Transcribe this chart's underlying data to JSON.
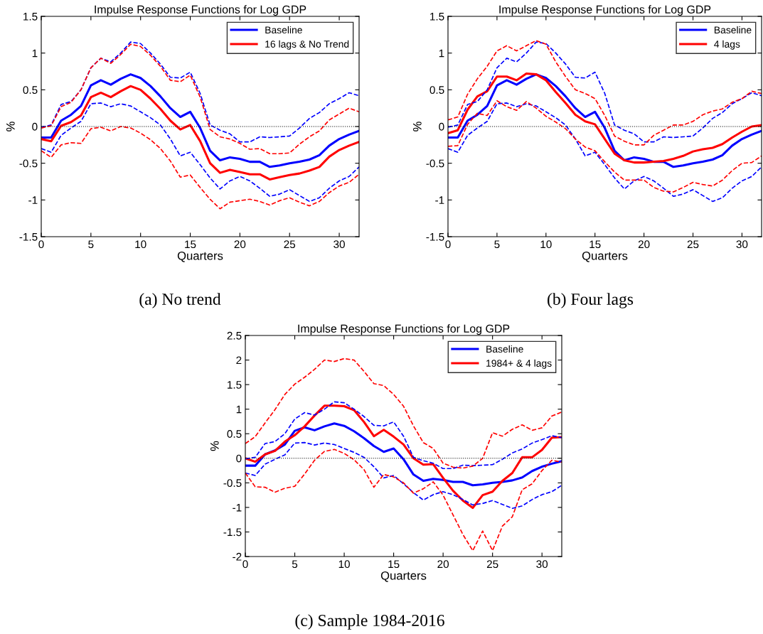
{
  "chart_data": [
    {
      "type": "line",
      "title": "Impulse Response Functions for Log GDP",
      "xlabel": "Quarters",
      "ylabel": "%",
      "annotations": [
        "(a) No trend"
      ],
      "legend": "top right",
      "grid": false,
      "marker": "none",
      "x": [
        0,
        1,
        2,
        3,
        4,
        5,
        6,
        7,
        8,
        9,
        10,
        11,
        12,
        13,
        14,
        15,
        16,
        17,
        18,
        19,
        20,
        21,
        22,
        23,
        24,
        25,
        26,
        27,
        28,
        29,
        30,
        31,
        32
      ],
      "xlim": [
        0,
        32
      ],
      "xticks": [
        0,
        5,
        10,
        15,
        20,
        25,
        30
      ],
      "ylim": [
        -1.5,
        1.5
      ],
      "yticks": [
        -1.5,
        -1,
        -0.5,
        0,
        0.5,
        1,
        1.5
      ],
      "ref_lines": [
        {
          "axis": "y",
          "value": 0,
          "color": "#000000",
          "line_style": "dotted"
        }
      ],
      "series": [
        {
          "name": "Baseline",
          "color": "#0000ff",
          "line_style": "solid",
          "values": [
            -0.15,
            -0.15,
            0.08,
            0.16,
            0.28,
            0.56,
            0.63,
            0.57,
            0.65,
            0.71,
            0.66,
            0.55,
            0.41,
            0.25,
            0.13,
            0.2,
            -0.02,
            -0.33,
            -0.46,
            -0.42,
            -0.44,
            -0.48,
            -0.48,
            -0.55,
            -0.53,
            -0.5,
            -0.48,
            -0.45,
            -0.39,
            -0.26,
            -0.17,
            -0.11,
            -0.06
          ]
        },
        {
          "name": "16 lags & No Trend",
          "color": "#ff0000",
          "line_style": "solid",
          "values": [
            -0.17,
            -0.2,
            0.01,
            0.06,
            0.15,
            0.4,
            0.46,
            0.4,
            0.48,
            0.55,
            0.5,
            0.38,
            0.24,
            0.08,
            -0.04,
            0.02,
            -0.2,
            -0.5,
            -0.63,
            -0.59,
            -0.62,
            -0.65,
            -0.65,
            -0.72,
            -0.69,
            -0.66,
            -0.64,
            -0.6,
            -0.55,
            -0.41,
            -0.32,
            -0.26,
            -0.21
          ]
        },
        {
          "color": "#0000ff",
          "line_style": "dashed",
          "values": [
            -0.01,
            0.02,
            0.3,
            0.34,
            0.5,
            0.8,
            0.93,
            0.88,
            1.0,
            1.15,
            1.13,
            1.0,
            0.85,
            0.67,
            0.66,
            0.74,
            0.45,
            0.02,
            -0.05,
            -0.1,
            -0.21,
            -0.21,
            -0.14,
            -0.15,
            -0.14,
            -0.13,
            -0.02,
            0.11,
            0.19,
            0.31,
            0.38,
            0.46,
            0.42
          ]
        },
        {
          "color": "#0000ff",
          "line_style": "dashed",
          "values": [
            -0.3,
            -0.35,
            -0.12,
            -0.02,
            0.07,
            0.31,
            0.32,
            0.27,
            0.31,
            0.28,
            0.2,
            0.12,
            0.02,
            -0.17,
            -0.4,
            -0.35,
            -0.52,
            -0.7,
            -0.85,
            -0.74,
            -0.68,
            -0.74,
            -0.84,
            -0.95,
            -0.92,
            -0.86,
            -0.94,
            -1.02,
            -0.97,
            -0.84,
            -0.74,
            -0.68,
            -0.55
          ]
        },
        {
          "color": "#ff0000",
          "line_style": "dashed",
          "values": [
            -0.02,
            0.01,
            0.27,
            0.33,
            0.5,
            0.8,
            0.93,
            0.86,
            0.98,
            1.12,
            1.09,
            0.97,
            0.82,
            0.63,
            0.61,
            0.7,
            0.4,
            -0.04,
            -0.14,
            -0.17,
            -0.23,
            -0.31,
            -0.3,
            -0.37,
            -0.37,
            -0.36,
            -0.24,
            -0.14,
            -0.06,
            0.09,
            0.17,
            0.25,
            0.2
          ]
        },
        {
          "color": "#ff0000",
          "line_style": "dashed",
          "values": [
            -0.33,
            -0.42,
            -0.25,
            -0.22,
            -0.23,
            -0.03,
            -0.01,
            -0.06,
            0.0,
            -0.02,
            -0.09,
            -0.18,
            -0.3,
            -0.47,
            -0.69,
            -0.66,
            -0.83,
            -0.99,
            -1.12,
            -1.03,
            -1.01,
            -0.99,
            -1.02,
            -1.07,
            -1.01,
            -0.97,
            -1.03,
            -1.08,
            -1.02,
            -0.9,
            -0.81,
            -0.76,
            -0.65
          ]
        }
      ]
    },
    {
      "type": "line",
      "title": "Impulse Response Functions for Log GDP",
      "xlabel": "Quarters",
      "ylabel": "%",
      "annotations": [
        "(b) Four lags"
      ],
      "legend": "top right",
      "grid": false,
      "marker": "none",
      "x": [
        0,
        1,
        2,
        3,
        4,
        5,
        6,
        7,
        8,
        9,
        10,
        11,
        12,
        13,
        14,
        15,
        16,
        17,
        18,
        19,
        20,
        21,
        22,
        23,
        24,
        25,
        26,
        27,
        28,
        29,
        30,
        31,
        32
      ],
      "xlim": [
        0,
        32
      ],
      "xticks": [
        0,
        5,
        10,
        15,
        20,
        25,
        30
      ],
      "ylim": [
        -1.5,
        1.5
      ],
      "yticks": [
        -1.5,
        -1,
        -0.5,
        0,
        0.5,
        1,
        1.5
      ],
      "ref_lines": [
        {
          "axis": "y",
          "value": 0,
          "color": "#000000",
          "line_style": "dotted"
        }
      ],
      "series": [
        {
          "name": "Baseline",
          "color": "#0000ff",
          "line_style": "solid",
          "values": [
            -0.15,
            -0.15,
            0.08,
            0.16,
            0.28,
            0.56,
            0.63,
            0.57,
            0.65,
            0.71,
            0.66,
            0.55,
            0.41,
            0.25,
            0.13,
            0.2,
            -0.02,
            -0.33,
            -0.46,
            -0.42,
            -0.44,
            -0.48,
            -0.48,
            -0.55,
            -0.53,
            -0.5,
            -0.48,
            -0.45,
            -0.39,
            -0.26,
            -0.17,
            -0.11,
            -0.06
          ]
        },
        {
          "name": "4 lags",
          "color": "#ff0000",
          "line_style": "solid",
          "values": [
            -0.09,
            -0.05,
            0.23,
            0.41,
            0.48,
            0.68,
            0.68,
            0.63,
            0.72,
            0.71,
            0.63,
            0.47,
            0.32,
            0.16,
            0.07,
            0.03,
            -0.17,
            -0.37,
            -0.46,
            -0.49,
            -0.49,
            -0.48,
            -0.47,
            -0.44,
            -0.4,
            -0.34,
            -0.31,
            -0.29,
            -0.24,
            -0.15,
            -0.07,
            0.0,
            0.02
          ]
        },
        {
          "color": "#0000ff",
          "line_style": "dashed",
          "values": [
            -0.01,
            0.02,
            0.3,
            0.34,
            0.5,
            0.8,
            0.93,
            0.88,
            1.0,
            1.15,
            1.13,
            1.0,
            0.85,
            0.67,
            0.66,
            0.74,
            0.45,
            0.02,
            -0.05,
            -0.1,
            -0.21,
            -0.21,
            -0.14,
            -0.15,
            -0.14,
            -0.13,
            -0.02,
            0.11,
            0.19,
            0.31,
            0.38,
            0.46,
            0.42
          ]
        },
        {
          "color": "#0000ff",
          "line_style": "dashed",
          "values": [
            -0.3,
            -0.35,
            -0.12,
            -0.02,
            0.07,
            0.31,
            0.32,
            0.27,
            0.31,
            0.28,
            0.2,
            0.12,
            0.02,
            -0.17,
            -0.4,
            -0.35,
            -0.52,
            -0.7,
            -0.85,
            -0.74,
            -0.68,
            -0.74,
            -0.84,
            -0.95,
            -0.92,
            -0.86,
            -0.94,
            -1.02,
            -0.97,
            -0.84,
            -0.74,
            -0.68,
            -0.55
          ]
        },
        {
          "color": "#ff0000",
          "line_style": "dashed",
          "values": [
            0.09,
            0.13,
            0.44,
            0.65,
            0.82,
            1.03,
            1.1,
            1.03,
            1.1,
            1.17,
            1.12,
            0.88,
            0.68,
            0.5,
            0.45,
            0.38,
            0.15,
            -0.13,
            -0.2,
            -0.25,
            -0.25,
            -0.12,
            -0.05,
            0.02,
            0.02,
            0.07,
            0.16,
            0.21,
            0.24,
            0.33,
            0.38,
            0.48,
            0.45
          ]
        },
        {
          "color": "#ff0000",
          "line_style": "dashed",
          "values": [
            -0.27,
            -0.26,
            0.03,
            0.18,
            0.15,
            0.35,
            0.27,
            0.22,
            0.34,
            0.25,
            0.14,
            0.06,
            -0.03,
            -0.17,
            -0.28,
            -0.33,
            -0.48,
            -0.62,
            -0.73,
            -0.73,
            -0.73,
            -0.83,
            -0.88,
            -0.89,
            -0.83,
            -0.76,
            -0.79,
            -0.81,
            -0.73,
            -0.6,
            -0.5,
            -0.49,
            -0.4
          ]
        }
      ]
    },
    {
      "type": "line",
      "title": "Impulse Response Functions for Log GDP",
      "xlabel": "Quarters",
      "ylabel": "%",
      "annotations": [
        "(c) Sample 1984-2016"
      ],
      "legend": "top right",
      "grid": false,
      "marker": "none",
      "x": [
        0,
        1,
        2,
        3,
        4,
        5,
        6,
        7,
        8,
        9,
        10,
        11,
        12,
        13,
        14,
        15,
        16,
        17,
        18,
        19,
        20,
        21,
        22,
        23,
        24,
        25,
        26,
        27,
        28,
        29,
        30,
        31,
        32
      ],
      "xlim": [
        0,
        32
      ],
      "xticks": [
        0,
        5,
        10,
        15,
        20,
        25,
        30
      ],
      "ylim": [
        -2,
        2.5
      ],
      "yticks": [
        -2,
        -1.5,
        -1,
        -0.5,
        0,
        0.5,
        1,
        1.5,
        2,
        2.5
      ],
      "ref_lines": [
        {
          "axis": "y",
          "value": 0,
          "color": "#000000",
          "line_style": "dotted"
        }
      ],
      "series": [
        {
          "name": "Baseline",
          "color": "#0000ff",
          "line_style": "solid",
          "values": [
            -0.15,
            -0.15,
            0.08,
            0.16,
            0.28,
            0.56,
            0.63,
            0.57,
            0.65,
            0.71,
            0.66,
            0.55,
            0.41,
            0.25,
            0.13,
            0.2,
            -0.02,
            -0.33,
            -0.46,
            -0.42,
            -0.44,
            -0.48,
            -0.48,
            -0.55,
            -0.53,
            -0.5,
            -0.48,
            -0.45,
            -0.39,
            -0.26,
            -0.17,
            -0.11,
            -0.06
          ]
        },
        {
          "name": "1984+ & 4 lags",
          "color": "#ff0000",
          "line_style": "solid",
          "values": [
            0.0,
            -0.07,
            0.08,
            0.15,
            0.34,
            0.47,
            0.65,
            0.87,
            1.07,
            1.07,
            1.06,
            0.98,
            0.74,
            0.45,
            0.58,
            0.44,
            0.28,
            0.0,
            -0.13,
            -0.12,
            -0.4,
            -0.66,
            -0.86,
            -1.01,
            -0.75,
            -0.68,
            -0.46,
            -0.3,
            0.02,
            0.02,
            0.17,
            0.42,
            0.43
          ]
        },
        {
          "color": "#0000ff",
          "line_style": "dashed",
          "values": [
            -0.01,
            0.02,
            0.3,
            0.34,
            0.5,
            0.8,
            0.93,
            0.88,
            1.0,
            1.15,
            1.13,
            1.0,
            0.85,
            0.67,
            0.66,
            0.74,
            0.45,
            0.02,
            -0.05,
            -0.1,
            -0.21,
            -0.21,
            -0.14,
            -0.15,
            -0.14,
            -0.13,
            -0.02,
            0.11,
            0.19,
            0.31,
            0.38,
            0.46,
            0.42
          ]
        },
        {
          "color": "#0000ff",
          "line_style": "dashed",
          "values": [
            -0.3,
            -0.35,
            -0.12,
            -0.02,
            0.07,
            0.31,
            0.32,
            0.27,
            0.31,
            0.28,
            0.2,
            0.12,
            0.02,
            -0.17,
            -0.4,
            -0.35,
            -0.52,
            -0.7,
            -0.85,
            -0.74,
            -0.68,
            -0.74,
            -0.84,
            -0.95,
            -0.92,
            -0.86,
            -0.94,
            -1.02,
            -0.97,
            -0.84,
            -0.74,
            -0.68,
            -0.55
          ]
        },
        {
          "color": "#ff0000",
          "line_style": "dashed",
          "values": [
            0.3,
            0.44,
            0.72,
            0.99,
            1.3,
            1.51,
            1.65,
            1.81,
            2.0,
            1.97,
            2.03,
            2.0,
            1.77,
            1.52,
            1.48,
            1.3,
            1.06,
            0.66,
            0.32,
            0.2,
            -0.1,
            -0.18,
            -0.2,
            -0.16,
            0.0,
            0.52,
            0.45,
            0.59,
            0.68,
            0.57,
            0.62,
            0.86,
            0.94
          ]
        },
        {
          "color": "#ff0000",
          "line_style": "dashed",
          "values": [
            -0.3,
            -0.58,
            -0.59,
            -0.69,
            -0.61,
            -0.57,
            -0.32,
            -0.04,
            0.14,
            0.18,
            0.1,
            -0.03,
            -0.23,
            -0.59,
            -0.33,
            -0.38,
            -0.5,
            -0.71,
            -0.62,
            -0.48,
            -0.75,
            -1.15,
            -1.55,
            -1.88,
            -1.48,
            -1.88,
            -1.38,
            -1.19,
            -0.64,
            -0.52,
            -0.25,
            -0.04,
            -0.08
          ]
        }
      ]
    }
  ]
}
